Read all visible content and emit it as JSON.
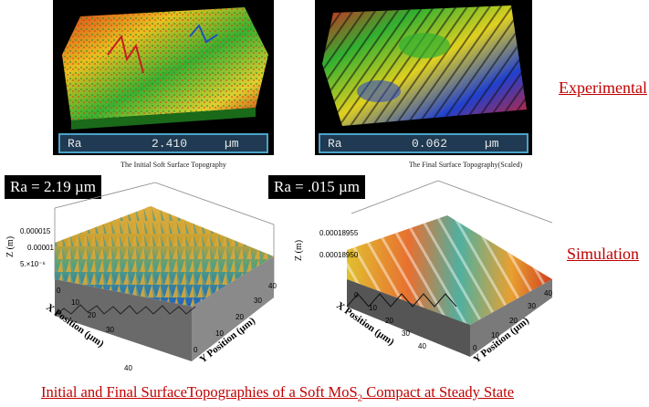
{
  "experimental": {
    "label": "Experimental",
    "left": {
      "ra_label": "Ra",
      "ra_value": "2.410",
      "ra_unit": "µm"
    },
    "right": {
      "ra_label": "Ra",
      "ra_value": "0.062",
      "ra_unit": "µm"
    }
  },
  "simulation": {
    "label": "Simulation",
    "initial": {
      "title": "The Initial Soft Surface Topography",
      "ra_text": "Ra = 2.19 µm",
      "z_label": "Z (m)",
      "z_ticks": [
        "0.000015",
        "0.00001",
        "5.×10⁻⁶"
      ],
      "x_label": "X Position (µm)",
      "y_label": "Y Position (µm)",
      "x_ticks": [
        "0",
        "10",
        "20",
        "30",
        "40"
      ],
      "y_ticks": [
        "0",
        "10",
        "20",
        "30",
        "40"
      ]
    },
    "final": {
      "title": "The Final Surface Topography(Scaled)",
      "ra_text": "Ra = .015 µm",
      "z_label": "Z (m)",
      "z_ticks": [
        "0.00018955",
        "0.00018950"
      ],
      "x_label": "X Position (µm)",
      "y_label": "Y Position (µm)",
      "x_ticks": [
        "0",
        "10",
        "20",
        "30",
        "40"
      ],
      "y_ticks": [
        "0",
        "10",
        "20",
        "30",
        "40"
      ]
    }
  },
  "caption": {
    "text_before": "Initial and Final SurfaceTopographies of a Soft MoS",
    "subscript": "2",
    "text_after": " Compact at Steady State"
  },
  "colors": {
    "accent_red": "#c00000",
    "readout_border": "#4aa3c9",
    "readout_bg": "#1f3a52"
  }
}
